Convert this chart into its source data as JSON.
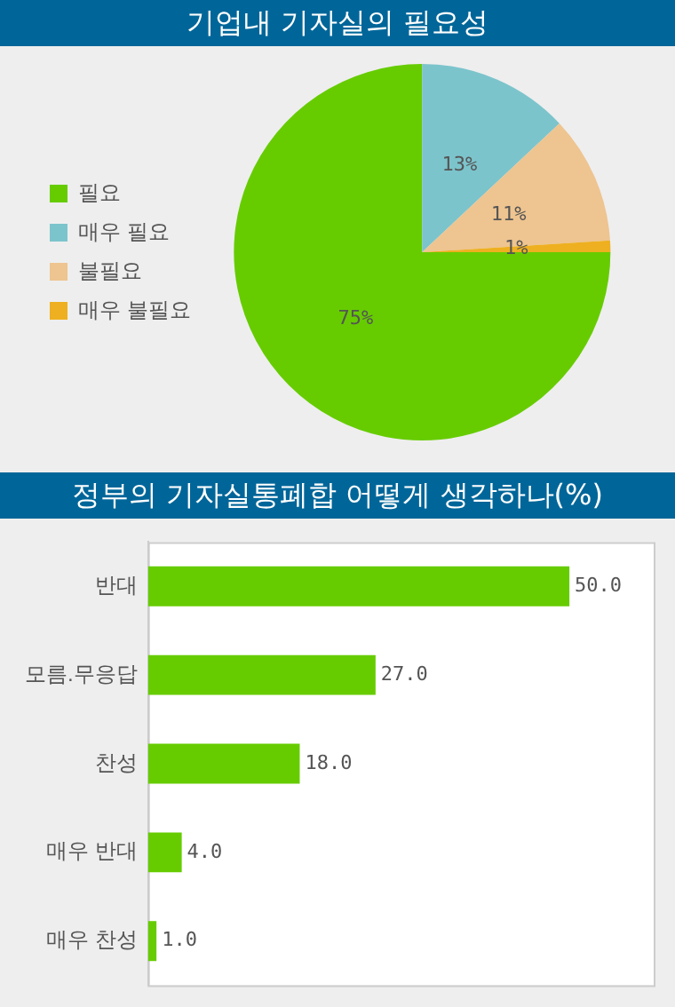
{
  "chart_data": [
    {
      "type": "pie",
      "title": "기업내 기자실의 필요성",
      "categories": [
        "필요",
        "매우 필요",
        "불필요",
        "매우 불필요"
      ],
      "values": [
        75,
        13,
        11,
        1
      ],
      "colors": [
        "#66cc00",
        "#7cc4cc",
        "#eec490",
        "#eeb020"
      ],
      "value_labels": [
        "75%",
        "13%",
        "11%",
        "1%"
      ],
      "legend": "left"
    },
    {
      "type": "bar",
      "orientation": "horizontal",
      "title": "정부의 기자실통폐합 어떻게 생각하나(%)",
      "categories": [
        "반대",
        "모름.무응답",
        "찬성",
        "매우 반대",
        "매우 찬성"
      ],
      "values": [
        50.0,
        27.0,
        18.0,
        4.0,
        1.0
      ],
      "color": "#66cc00",
      "value_labels": [
        "50.0",
        "27.0",
        "18.0",
        "4.0",
        "1.0"
      ]
    }
  ]
}
